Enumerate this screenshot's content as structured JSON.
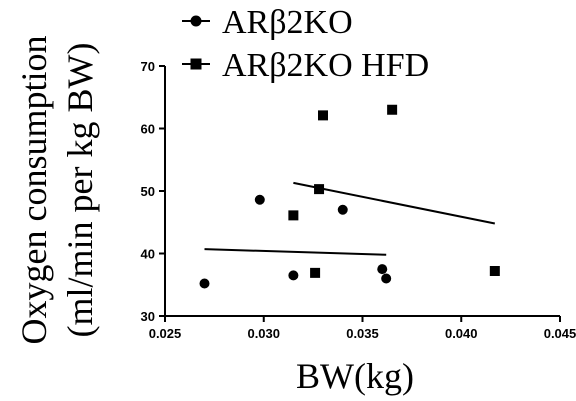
{
  "chart_data": {
    "type": "scatter",
    "title": "",
    "xlabel": "BW(kg)",
    "ylabel_line1": "Oxygen consumption",
    "ylabel_line2": "(ml/min per kg BW)",
    "xlim": [
      0.025,
      0.045
    ],
    "ylim": [
      30,
      70
    ],
    "x_ticks": [
      "0.025",
      "0.030",
      "0.035",
      "0.040",
      "0.045"
    ],
    "y_ticks": [
      "30",
      "40",
      "50",
      "60",
      "70"
    ],
    "grid": false,
    "legend_position": "top",
    "series": [
      {
        "name": "ARβ2KO",
        "marker": "circle",
        "x": [
          0.027,
          0.0298,
          0.0315,
          0.034,
          0.036,
          0.0362
        ],
        "y": [
          35.2,
          48.6,
          36.5,
          47.0,
          37.5,
          36.0
        ],
        "fit": {
          "x": [
            0.027,
            0.0362
          ],
          "y": [
            40.7,
            39.8
          ]
        }
      },
      {
        "name": "ARβ2KO HFD",
        "marker": "square",
        "x": [
          0.0315,
          0.0326,
          0.0328,
          0.033,
          0.0365,
          0.0417
        ],
        "y": [
          46.1,
          36.9,
          50.3,
          62.1,
          63.0,
          37.2
        ],
        "fit": {
          "x": [
            0.0315,
            0.0417
          ],
          "y": [
            51.3,
            44.8
          ]
        }
      }
    ]
  }
}
